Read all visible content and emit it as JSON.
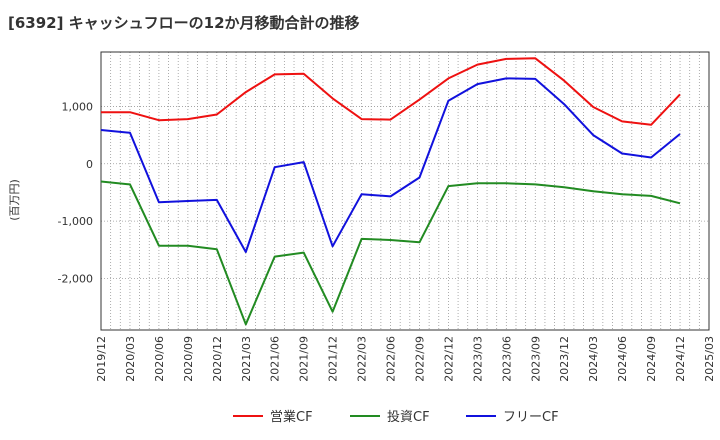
{
  "chart_data": {
    "type": "line",
    "title": "[6392]  キャッシュフローの12か月移動合計の推移",
    "ylabel": "(百万円)",
    "xlabel": "",
    "ylim": [
      -2900,
      1950
    ],
    "yticks": [
      1000,
      0,
      -1000,
      -2000
    ],
    "ytick_labels": [
      "1,000",
      "0",
      "-1,000",
      "-2,000"
    ],
    "x": [
      "2019/12",
      "2020/03",
      "2020/06",
      "2020/09",
      "2020/12",
      "2021/03",
      "2021/06",
      "2021/09",
      "2021/12",
      "2022/03",
      "2022/06",
      "2022/09",
      "2022/12",
      "2023/03",
      "2023/06",
      "2023/09",
      "2023/12",
      "2024/03",
      "2024/06",
      "2024/09",
      "2024/12",
      "2025/03"
    ],
    "series": [
      {
        "name": "営業CF",
        "color": "#ee1111",
        "values": [
          900,
          900,
          760,
          780,
          860,
          1250,
          1560,
          1570,
          1140,
          780,
          770,
          1120,
          1490,
          1730,
          1830,
          1840,
          1450,
          990,
          740,
          680,
          1210,
          null
        ]
      },
      {
        "name": "投資CF",
        "color": "#228b22",
        "values": [
          -310,
          -360,
          -1430,
          -1430,
          -1490,
          -2800,
          -1620,
          -1550,
          -2580,
          -1310,
          -1330,
          -1370,
          -390,
          -340,
          -340,
          -360,
          -410,
          -480,
          -530,
          -560,
          -690,
          null
        ]
      },
      {
        "name": "フリーCF",
        "color": "#1111dd",
        "values": [
          590,
          540,
          -670,
          -650,
          -630,
          -1540,
          -60,
          30,
          -1440,
          -530,
          -570,
          -240,
          1100,
          1390,
          1490,
          1480,
          1040,
          500,
          180,
          110,
          520,
          null
        ]
      }
    ],
    "grid": true,
    "legend_position": "bottom-center"
  }
}
